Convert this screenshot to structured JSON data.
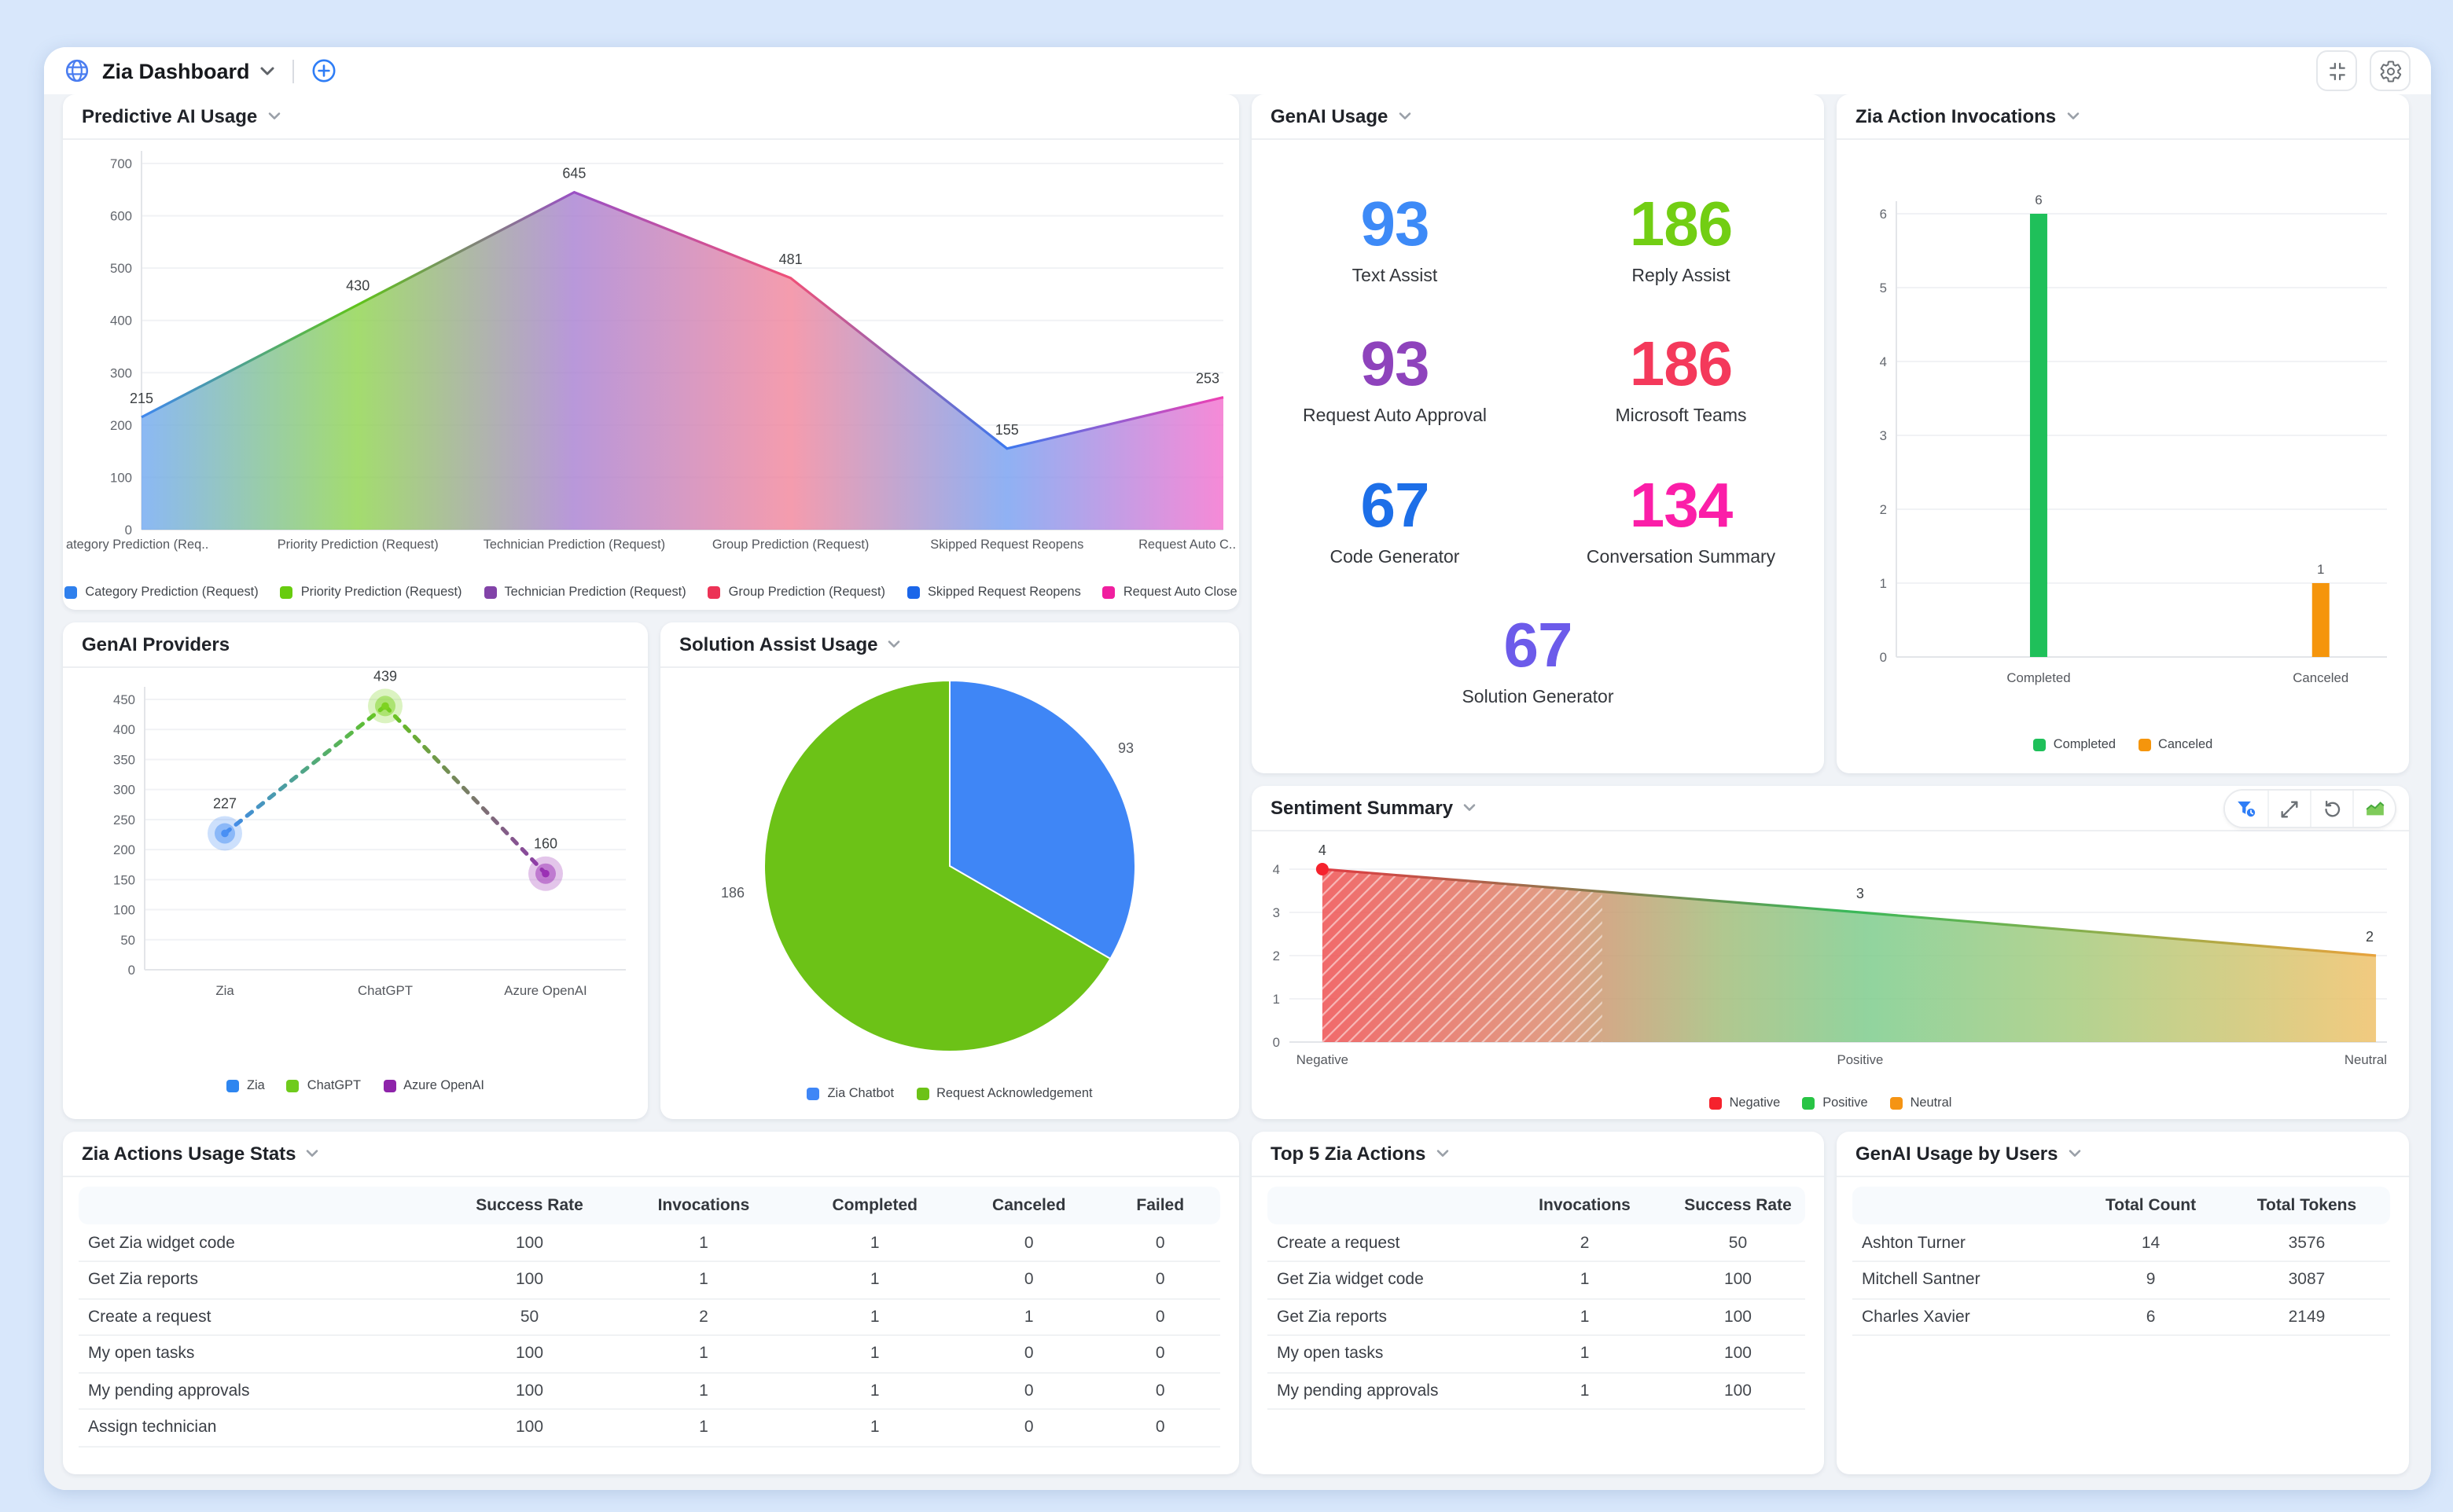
{
  "header": {
    "title": "Zia Dashboard",
    "icons": {
      "logo": "globe",
      "title_dropdown": "chevron-down",
      "add": "plus-circle",
      "collapse": "compress",
      "settings": "gear"
    }
  },
  "panels": {
    "predictive_ai_usage": {
      "title": "Predictive AI Usage",
      "chart_data": {
        "type": "area",
        "categories": [
          "ategory Prediction (Req..",
          "Priority Prediction (Request)",
          "Technician Prediction (Request)",
          "Group Prediction (Request)",
          "Skipped Request Reopens",
          "Request Auto C.."
        ],
        "values": [
          215,
          430,
          645,
          481,
          155,
          253
        ],
        "ylim": [
          0,
          700
        ],
        "ytick": 100,
        "grid": true,
        "legend_position": "bottom",
        "area_gradient": [
          "#72A9F2",
          "#8FD44F",
          "#A981D2",
          "#F2869C",
          "#77A0F1",
          "#F470CE"
        ],
        "line_gradient": [
          "#3F87EF",
          "#60C31A",
          "#9A50C5",
          "#EF5078",
          "#3C78EE",
          "#EF40B3"
        ],
        "legend": [
          {
            "label": "Category Prediction (Request)",
            "color": "#2F80ED"
          },
          {
            "label": "Priority Prediction (Request)",
            "color": "#68CC0F"
          },
          {
            "label": "Technician Prediction (Request)",
            "color": "#8243A8"
          },
          {
            "label": "Group Prediction (Request)",
            "color": "#EC3356"
          },
          {
            "label": "Skipped Request Reopens",
            "color": "#1B66E9"
          },
          {
            "label": "Request Auto Close",
            "color": "#F01F9F"
          }
        ]
      }
    },
    "genai_usage": {
      "title": "GenAI Usage",
      "stats": [
        {
          "value": "93",
          "label": "Text Assist",
          "color": "#3D8AF7"
        },
        {
          "value": "186",
          "label": "Reply Assist",
          "color": "#72CE13"
        },
        {
          "value": "93",
          "label": "Request Auto Approval",
          "color": "#8E43BC"
        },
        {
          "value": "186",
          "label": "Microsoft Teams",
          "color": "#F4395B"
        },
        {
          "value": "67",
          "label": "Code Generator",
          "color": "#1D6FE8"
        },
        {
          "value": "134",
          "label": "Conversation Summary",
          "color": "#FB1EA8"
        },
        {
          "value": "67",
          "label": "Solution Generator",
          "color": "#6C5BEA"
        }
      ]
    },
    "zia_action_invocations": {
      "title": "Zia Action Invocations",
      "chart_data": {
        "type": "bar",
        "categories": [
          "Completed",
          "Canceled"
        ],
        "values": [
          6,
          1
        ],
        "colors": [
          "#1FC05A",
          "#F5950C"
        ],
        "ylim": [
          0,
          6
        ],
        "ytick": 1,
        "grid": true,
        "legend": [
          {
            "label": "Completed",
            "color": "#1FC05A"
          },
          {
            "label": "Canceled",
            "color": "#F5950C"
          }
        ]
      }
    },
    "genai_providers": {
      "title": "GenAI Providers",
      "chart_data": {
        "type": "line",
        "style": "dotted",
        "categories": [
          "Zia",
          "ChatGPT",
          "Azure OpenAI"
        ],
        "values": [
          227,
          439,
          160
        ],
        "point_colors": [
          "#4A90F4",
          "#7ED321",
          "#9B30B5"
        ],
        "segment_gradients": [
          [
            "#3F87EF",
            "#62C51C"
          ],
          [
            "#62C51C",
            "#8E3AAB"
          ]
        ],
        "ylim": [
          0,
          450
        ],
        "ytick": 50,
        "grid": true,
        "legend": [
          {
            "label": "Zia",
            "color": "#2E86F0"
          },
          {
            "label": "ChatGPT",
            "color": "#6FCB1C"
          },
          {
            "label": "Azure OpenAI",
            "color": "#8E24AA"
          }
        ]
      }
    },
    "solution_assist_usage": {
      "title": "Solution Assist Usage",
      "chart_data": {
        "type": "pie",
        "slices": [
          {
            "label": "Zia Chatbot",
            "value": 93,
            "color": "#3F86F6"
          },
          {
            "label": "Request Acknowledgement",
            "value": 186,
            "color": "#6CC217"
          }
        ],
        "legend": [
          {
            "label": "Zia Chatbot",
            "color": "#3F86F6"
          },
          {
            "label": "Request Acknowledgement",
            "color": "#6CC217"
          }
        ]
      }
    },
    "sentiment_summary": {
      "title": "Sentiment Summary",
      "toolbar": [
        "time-filter",
        "expand",
        "reset",
        "chart-type"
      ],
      "chart_data": {
        "type": "area",
        "categories": [
          "Negative",
          "Positive",
          "Neutral"
        ],
        "values": [
          4,
          3,
          2
        ],
        "ylim": [
          0,
          4
        ],
        "ytick": 1,
        "grid": true,
        "hatch_until_fraction": 0.285,
        "fill_gradient": [
          [
            0,
            "#EE5051"
          ],
          [
            0.22,
            "#DC8B6E"
          ],
          [
            0.38,
            "#A3BE7C"
          ],
          [
            0.52,
            "#7ECC8D"
          ],
          [
            0.72,
            "#A8CB7D"
          ],
          [
            1,
            "#EFC169"
          ]
        ],
        "line_gradient": [
          [
            0,
            "#E03C43"
          ],
          [
            0.5,
            "#39B859"
          ],
          [
            1,
            "#E8A23C"
          ]
        ],
        "marker_color": "#F5222D",
        "legend": [
          {
            "label": "Negative",
            "color": "#F5222D"
          },
          {
            "label": "Positive",
            "color": "#28C445"
          },
          {
            "label": "Neutral",
            "color": "#F59413"
          }
        ]
      }
    },
    "zia_actions_usage_stats": {
      "title": "Zia Actions Usage Stats",
      "table": {
        "columns": [
          "",
          "Success Rate",
          "Invocations",
          "Completed",
          "Canceled",
          "Failed"
        ],
        "rows": [
          [
            "Get Zia widget code",
            "100",
            "1",
            "1",
            "0",
            "0"
          ],
          [
            "Get Zia reports",
            "100",
            "1",
            "1",
            "0",
            "0"
          ],
          [
            "Create a request",
            "50",
            "2",
            "1",
            "1",
            "0"
          ],
          [
            "My open tasks",
            "100",
            "1",
            "1",
            "0",
            "0"
          ],
          [
            "My pending approvals",
            "100",
            "1",
            "1",
            "0",
            "0"
          ],
          [
            "Assign technician",
            "100",
            "1",
            "1",
            "0",
            "0"
          ]
        ]
      }
    },
    "top_5_zia_actions": {
      "title": "Top 5 Zia Actions",
      "table": {
        "columns": [
          "",
          "Invocations",
          "Success Rate"
        ],
        "rows": [
          [
            "Create a request",
            "2",
            "50"
          ],
          [
            "Get Zia widget code",
            "1",
            "100"
          ],
          [
            "Get Zia reports",
            "1",
            "100"
          ],
          [
            "My open tasks",
            "1",
            "100"
          ],
          [
            "My pending approvals",
            "1",
            "100"
          ]
        ]
      }
    },
    "genai_usage_by_users": {
      "title": "GenAI Usage by Users",
      "table": {
        "columns": [
          "",
          "Total Count",
          "Total Tokens"
        ],
        "rows": [
          [
            "Ashton Turner",
            "14",
            "3576"
          ],
          [
            "Mitchell Santner",
            "9",
            "3087"
          ],
          [
            "Charles Xavier",
            "6",
            "2149"
          ]
        ]
      }
    }
  }
}
